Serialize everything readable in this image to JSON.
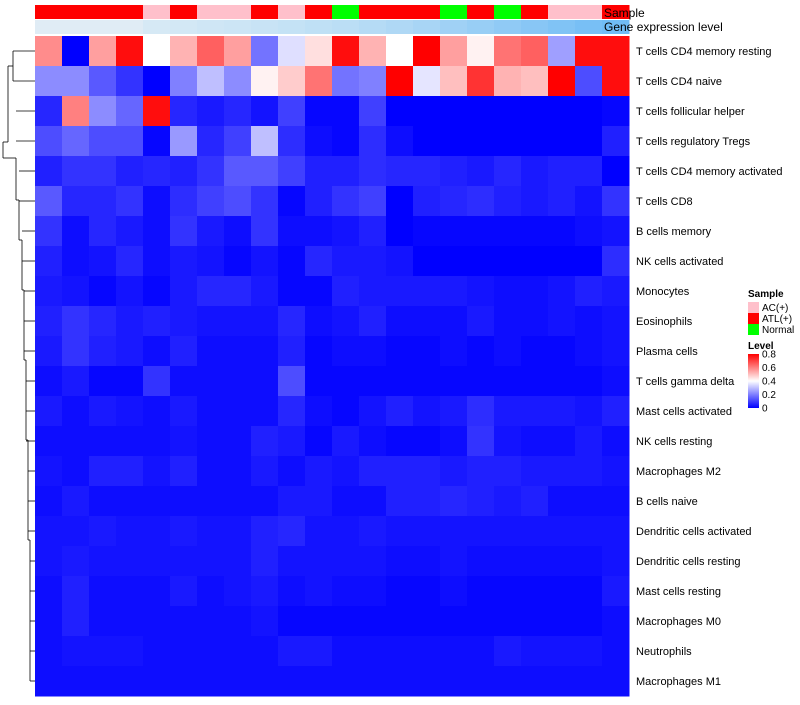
{
  "chart_data": {
    "type": "heatmap",
    "annotation_tracks": [
      "Sample",
      "Gene expression level"
    ],
    "sample_groups": [
      "ATL(+)",
      "ATL(+)",
      "ATL(+)",
      "ATL(+)",
      "AC(+)",
      "ATL(+)",
      "AC(+)",
      "AC(+)",
      "ATL(+)",
      "AC(+)",
      "ATL(+)",
      "Normal",
      "ATL(+)",
      "ATL(+)",
      "ATL(+)",
      "Normal",
      "ATL(+)",
      "Normal",
      "ATL(+)",
      "AC(+)",
      "AC(+)",
      "ATL(+)"
    ],
    "expression_level_colors": [
      "#e0ecf5",
      "#e0ecf5",
      "#e0ecf5",
      "#e0ecf5",
      "#d6e9f5",
      "#d3e8f5",
      "#cfe6f5",
      "#cce5f5",
      "#c8e3f5",
      "#c4e2f5",
      "#bfe0f5",
      "#bbdef5",
      "#b5dbf5",
      "#afd8f5",
      "#a8d5f5",
      "#a0d1f5",
      "#98cef5",
      "#90caf5",
      "#88c6f5",
      "#80c3f5",
      "#78bff5",
      "#70bcf5"
    ],
    "rows": [
      "T cells CD4 memory resting",
      "T cells CD4 naive",
      "T cells follicular helper",
      "T cells regulatory  Tregs",
      "T cells CD4 memory activated",
      "T cells CD8",
      "B cells memory",
      "NK cells activated",
      "Monocytes",
      "Eosinophils",
      "Plasma cells",
      "T cells gamma delta",
      "Mast cells activated",
      "NK cells resting",
      "Macrophages M2",
      "B cells naive",
      "Dendritic cells activated",
      "Dendritic cells resting",
      "Mast cells resting",
      "Macrophages M0",
      "Neutrophils",
      "Macrophages M1"
    ],
    "values": [
      [
        0.58,
        0.0,
        0.55,
        0.78,
        0.4,
        0.52,
        0.65,
        0.55,
        0.18,
        0.35,
        0.45,
        0.78,
        0.52,
        0.4,
        0.8,
        0.55,
        0.42,
        0.62,
        0.65,
        0.25,
        0.78,
        0.78
      ],
      [
        0.22,
        0.22,
        0.14,
        0.08,
        0.0,
        0.2,
        0.3,
        0.22,
        0.42,
        0.48,
        0.62,
        0.18,
        0.2,
        0.8,
        0.36,
        0.5,
        0.72,
        0.52,
        0.5,
        0.8,
        0.12,
        0.78
      ],
      [
        0.06,
        0.6,
        0.22,
        0.16,
        0.78,
        0.06,
        0.04,
        0.06,
        0.03,
        0.1,
        0.01,
        0.01,
        0.1,
        0.0,
        0.0,
        0.0,
        0.0,
        0.0,
        0.0,
        0.0,
        0.0,
        0.01
      ],
      [
        0.12,
        0.16,
        0.12,
        0.12,
        0.01,
        0.24,
        0.06,
        0.1,
        0.3,
        0.07,
        0.02,
        0.01,
        0.07,
        0.02,
        0.0,
        0.0,
        0.0,
        0.0,
        0.0,
        0.0,
        0.0,
        0.05
      ],
      [
        0.05,
        0.08,
        0.08,
        0.05,
        0.06,
        0.05,
        0.08,
        0.14,
        0.14,
        0.1,
        0.05,
        0.05,
        0.07,
        0.06,
        0.06,
        0.05,
        0.04,
        0.06,
        0.04,
        0.05,
        0.05,
        0.0
      ],
      [
        0.14,
        0.06,
        0.06,
        0.08,
        0.02,
        0.07,
        0.1,
        0.12,
        0.08,
        0.01,
        0.05,
        0.08,
        0.1,
        0.0,
        0.05,
        0.06,
        0.07,
        0.05,
        0.04,
        0.05,
        0.03,
        0.08
      ],
      [
        0.08,
        0.02,
        0.06,
        0.04,
        0.02,
        0.08,
        0.04,
        0.02,
        0.08,
        0.02,
        0.02,
        0.03,
        0.05,
        0.0,
        0.01,
        0.01,
        0.01,
        0.01,
        0.01,
        0.01,
        0.02,
        0.03
      ],
      [
        0.05,
        0.02,
        0.03,
        0.06,
        0.02,
        0.04,
        0.03,
        0.01,
        0.03,
        0.01,
        0.06,
        0.04,
        0.04,
        0.03,
        0.0,
        0.0,
        0.0,
        0.0,
        0.0,
        0.0,
        0.0,
        0.07
      ],
      [
        0.04,
        0.03,
        0.01,
        0.03,
        0.01,
        0.04,
        0.06,
        0.06,
        0.04,
        0.01,
        0.01,
        0.05,
        0.04,
        0.04,
        0.04,
        0.04,
        0.03,
        0.02,
        0.02,
        0.03,
        0.05,
        0.04
      ],
      [
        0.05,
        0.08,
        0.06,
        0.04,
        0.05,
        0.04,
        0.03,
        0.03,
        0.03,
        0.06,
        0.02,
        0.03,
        0.05,
        0.02,
        0.02,
        0.02,
        0.04,
        0.02,
        0.02,
        0.03,
        0.02,
        0.03
      ],
      [
        0.04,
        0.08,
        0.05,
        0.04,
        0.02,
        0.05,
        0.02,
        0.02,
        0.02,
        0.05,
        0.01,
        0.02,
        0.02,
        0.01,
        0.01,
        0.02,
        0.01,
        0.02,
        0.01,
        0.01,
        0.02,
        0.03
      ],
      [
        0.02,
        0.04,
        0.01,
        0.01,
        0.08,
        0.02,
        0.02,
        0.02,
        0.02,
        0.12,
        0.01,
        0.01,
        0.01,
        0.01,
        0.01,
        0.01,
        0.01,
        0.01,
        0.01,
        0.01,
        0.01,
        0.02
      ],
      [
        0.04,
        0.02,
        0.04,
        0.03,
        0.02,
        0.04,
        0.02,
        0.02,
        0.02,
        0.06,
        0.02,
        0.01,
        0.03,
        0.05,
        0.03,
        0.04,
        0.07,
        0.04,
        0.04,
        0.04,
        0.03,
        0.05
      ],
      [
        0.02,
        0.02,
        0.02,
        0.02,
        0.02,
        0.03,
        0.02,
        0.02,
        0.05,
        0.04,
        0.01,
        0.04,
        0.02,
        0.01,
        0.01,
        0.02,
        0.08,
        0.03,
        0.02,
        0.02,
        0.04,
        0.02
      ],
      [
        0.03,
        0.02,
        0.05,
        0.05,
        0.03,
        0.05,
        0.02,
        0.02,
        0.04,
        0.02,
        0.04,
        0.03,
        0.05,
        0.05,
        0.05,
        0.04,
        0.05,
        0.05,
        0.04,
        0.04,
        0.04,
        0.03
      ],
      [
        0.02,
        0.04,
        0.02,
        0.02,
        0.02,
        0.02,
        0.02,
        0.02,
        0.02,
        0.04,
        0.04,
        0.02,
        0.02,
        0.05,
        0.05,
        0.06,
        0.05,
        0.04,
        0.05,
        0.02,
        0.02,
        0.02
      ],
      [
        0.03,
        0.03,
        0.04,
        0.03,
        0.03,
        0.04,
        0.03,
        0.03,
        0.05,
        0.06,
        0.03,
        0.03,
        0.04,
        0.03,
        0.03,
        0.03,
        0.03,
        0.03,
        0.03,
        0.03,
        0.03,
        0.03
      ],
      [
        0.03,
        0.04,
        0.03,
        0.03,
        0.03,
        0.03,
        0.03,
        0.03,
        0.05,
        0.03,
        0.03,
        0.03,
        0.03,
        0.02,
        0.02,
        0.03,
        0.02,
        0.02,
        0.02,
        0.02,
        0.02,
        0.03
      ],
      [
        0.02,
        0.05,
        0.02,
        0.02,
        0.02,
        0.04,
        0.02,
        0.03,
        0.04,
        0.02,
        0.03,
        0.02,
        0.02,
        0.01,
        0.01,
        0.02,
        0.01,
        0.01,
        0.01,
        0.01,
        0.01,
        0.04
      ],
      [
        0.02,
        0.05,
        0.02,
        0.02,
        0.02,
        0.02,
        0.02,
        0.02,
        0.03,
        0.01,
        0.01,
        0.01,
        0.01,
        0.01,
        0.01,
        0.01,
        0.01,
        0.01,
        0.01,
        0.01,
        0.01,
        0.02
      ],
      [
        0.02,
        0.03,
        0.03,
        0.03,
        0.02,
        0.02,
        0.02,
        0.02,
        0.02,
        0.04,
        0.04,
        0.02,
        0.02,
        0.02,
        0.02,
        0.02,
        0.02,
        0.04,
        0.03,
        0.03,
        0.03,
        0.02
      ],
      [
        0.02,
        0.02,
        0.02,
        0.02,
        0.02,
        0.02,
        0.02,
        0.02,
        0.02,
        0.02,
        0.02,
        0.02,
        0.02,
        0.02,
        0.02,
        0.02,
        0.02,
        0.02,
        0.02,
        0.02,
        0.02,
        0.02
      ]
    ],
    "color_scale": {
      "min": 0,
      "mid": 0.4,
      "max": 0.8,
      "low": "#0000ff",
      "midcolor": "#ffffff",
      "high": "#ff0000"
    },
    "sample_legend": {
      "title": "Sample",
      "entries": [
        {
          "label": "AC(+)",
          "color": "#ffc0cb"
        },
        {
          "label": "ATL(+)",
          "color": "#ff0000"
        },
        {
          "label": "Normal",
          "color": "#00ff00"
        }
      ]
    },
    "level_legend": {
      "title": "Level",
      "ticks": [
        "0.8",
        "0.6",
        "0.4",
        "0.2",
        "0"
      ],
      "tick_values": [
        0.8,
        0.6,
        0.4,
        0.2,
        0
      ]
    },
    "dendrogram": "row clustering (left), columns unclustered"
  }
}
